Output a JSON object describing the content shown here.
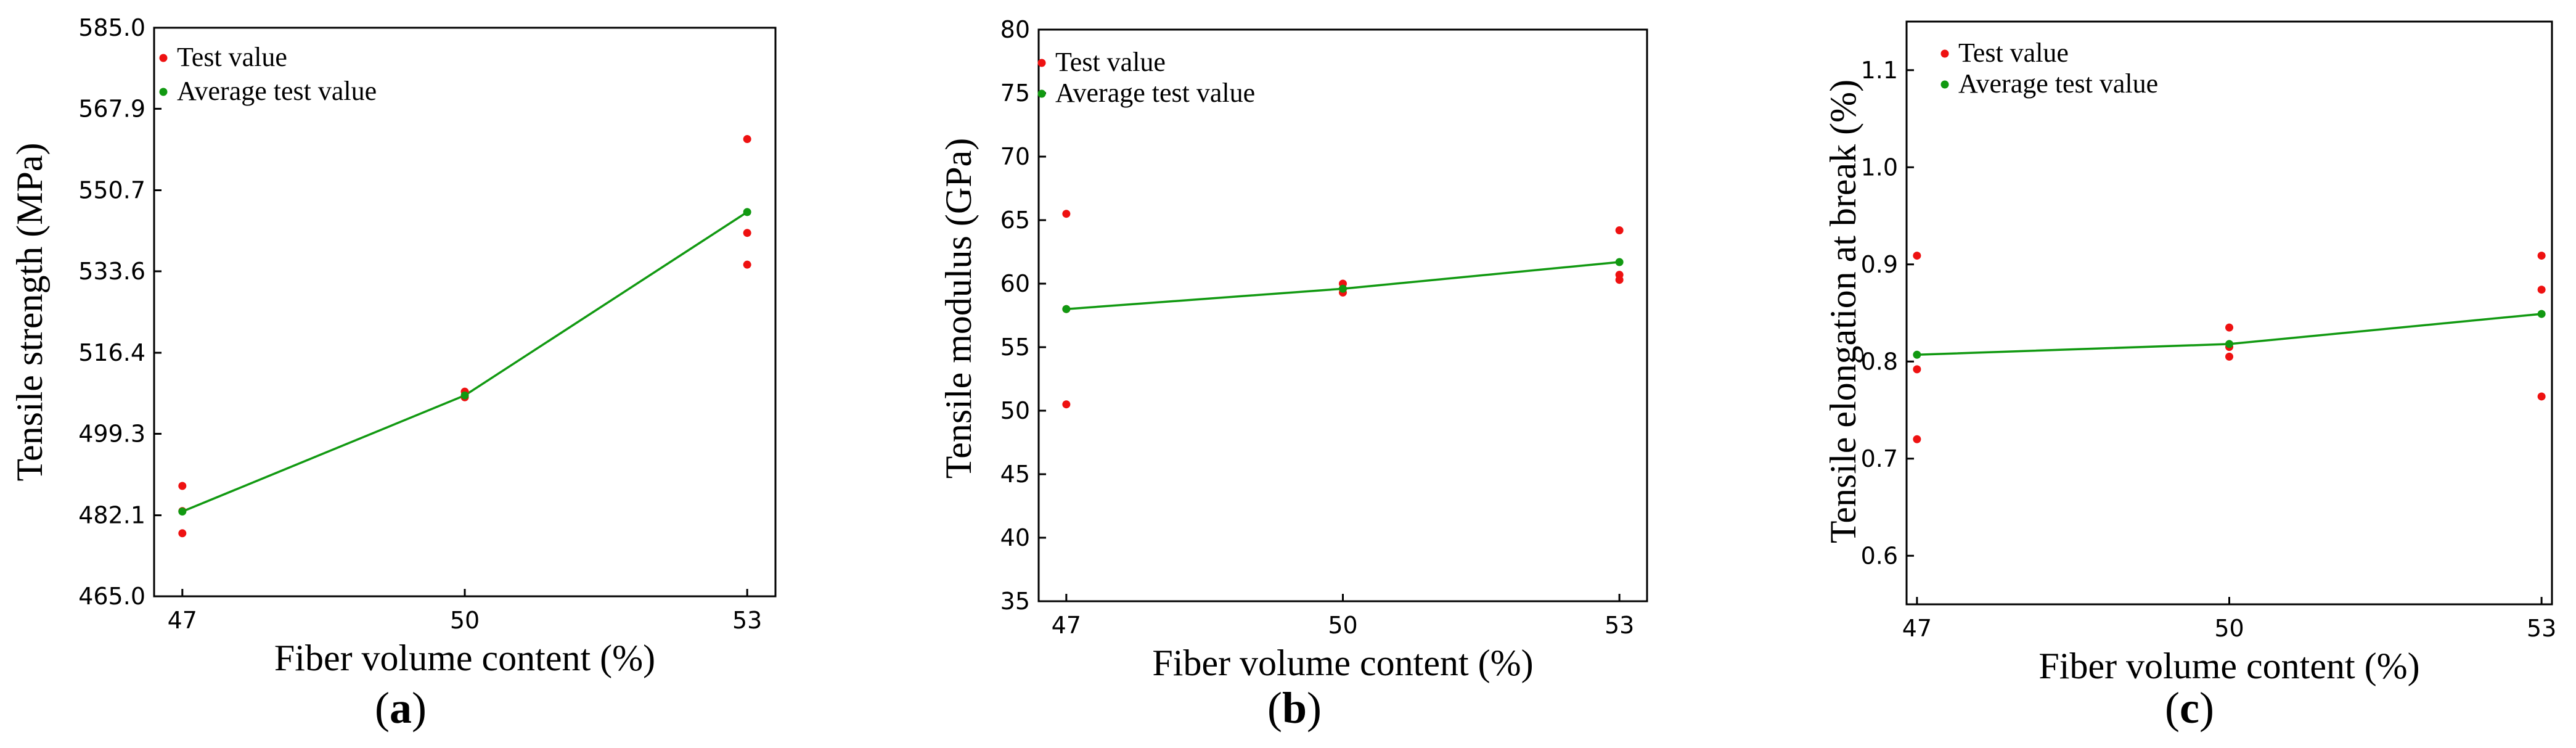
{
  "colors": {
    "test": "#ee1111",
    "average": "#119911",
    "axis": "#000000"
  },
  "chart_data": [
    {
      "type": "scatter+line",
      "panel_label": "a",
      "xlabel": "Fiber volume content (%)",
      "ylabel": "Tensile strength (MPa)",
      "x_ticks": [
        47,
        50,
        53
      ],
      "x_tick_labels": [
        "47",
        "50",
        "53"
      ],
      "xlim": [
        46.7,
        53.3
      ],
      "y_ticks": [
        465.0,
        482.1,
        499.3,
        516.4,
        533.6,
        550.7,
        567.9,
        585.0
      ],
      "y_tick_labels": [
        "465.0",
        "482.1",
        "499.3",
        "516.4",
        "533.6",
        "550.7",
        "567.9",
        "585.0"
      ],
      "ylim": [
        465.0,
        585.0
      ],
      "legend": {
        "position": "top-left",
        "entries": [
          "Test value",
          "Average test value"
        ]
      },
      "series": [
        {
          "name": "Test value",
          "kind": "scatter",
          "points": [
            [
              47,
              488.3
            ],
            [
              47,
              483.0
            ],
            [
              47,
              478.3
            ],
            [
              50,
              508.2
            ],
            [
              50,
              507.0
            ],
            [
              53,
              561.5
            ],
            [
              53,
              541.7
            ],
            [
              53,
              535.0
            ]
          ]
        },
        {
          "name": "Average test value",
          "kind": "line+markers",
          "points": [
            [
              47,
              482.9
            ],
            [
              50,
              507.4
            ],
            [
              53,
              546.1
            ]
          ]
        }
      ]
    },
    {
      "type": "scatter+line",
      "panel_label": "b",
      "xlabel": "Fiber volume content (%)",
      "ylabel": "Tensile modulus (GPa)",
      "x_ticks": [
        47,
        50,
        53
      ],
      "x_tick_labels": [
        "47",
        "50",
        "53"
      ],
      "xlim": [
        46.7,
        53.3
      ],
      "y_ticks": [
        35,
        40,
        45,
        50,
        55,
        60,
        65,
        70,
        75,
        80
      ],
      "y_tick_labels": [
        "35",
        "40",
        "45",
        "50",
        "55",
        "60",
        "65",
        "70",
        "75",
        "80"
      ],
      "ylim": [
        35,
        80
      ],
      "legend": {
        "position": "top-left",
        "entries": [
          "Test value",
          "Average test value"
        ]
      },
      "series": [
        {
          "name": "Test value",
          "kind": "scatter",
          "points": [
            [
              47,
              65.5
            ],
            [
              47,
              58.0
            ],
            [
              47,
              50.5
            ],
            [
              50,
              60.0
            ],
            [
              50,
              59.6
            ],
            [
              50,
              59.3
            ],
            [
              53,
              64.2
            ],
            [
              53,
              60.7
            ],
            [
              53,
              60.3
            ]
          ]
        },
        {
          "name": "Average test value",
          "kind": "line+markers",
          "points": [
            [
              47,
              58.0
            ],
            [
              50,
              59.6
            ],
            [
              53,
              61.7
            ]
          ]
        }
      ]
    },
    {
      "type": "scatter+line",
      "panel_label": "c",
      "xlabel": "Fiber volume content (%)",
      "ylabel": "Tensile elongation at break (%)",
      "x_ticks": [
        47,
        50,
        53
      ],
      "x_tick_labels": [
        "47",
        "50",
        "53"
      ],
      "xlim": [
        46.9,
        53.1
      ],
      "y_ticks": [
        0.6,
        0.7,
        0.8,
        0.9,
        1.0,
        1.1
      ],
      "y_tick_labels": [
        "0.6",
        "0.7",
        "0.8",
        "0.9",
        "1.0",
        "1.1"
      ],
      "ylim": [
        0.55,
        1.15
      ],
      "legend": {
        "position": "top-left",
        "entries": [
          "Test value",
          "Average test value"
        ]
      },
      "series": [
        {
          "name": "Test value",
          "kind": "scatter",
          "points": [
            [
              47,
              0.909
            ],
            [
              47,
              0.792
            ],
            [
              47,
              0.72
            ],
            [
              50,
              0.835
            ],
            [
              50,
              0.815
            ],
            [
              50,
              0.805
            ],
            [
              53,
              0.909
            ],
            [
              53,
              0.874
            ],
            [
              53,
              0.764
            ]
          ]
        },
        {
          "name": "Average test value",
          "kind": "line+markers",
          "points": [
            [
              47,
              0.807
            ],
            [
              50,
              0.818
            ],
            [
              53,
              0.849
            ]
          ]
        }
      ]
    }
  ]
}
